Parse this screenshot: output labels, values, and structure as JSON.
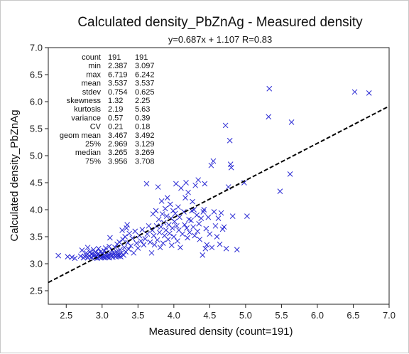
{
  "chart_data": {
    "type": "scatter",
    "title": "Calculated density_PbZnAg - Measured density",
    "subtitle": "y=0.687x + 1.107  R=0.83",
    "xlabel": "Measured density (count=191)",
    "ylabel": "Calculated density_PbZnAg",
    "xlim": [
      2.25,
      7.0
    ],
    "ylim": [
      2.25,
      7.0
    ],
    "xticks": [
      "2.5",
      "3.0",
      "3.5",
      "4.0",
      "4.5",
      "5.0",
      "5.5",
      "6.0",
      "6.5",
      "7.0"
    ],
    "yticks": [
      "2.5",
      "3.0",
      "3.5",
      "4.0",
      "4.5",
      "5.0",
      "5.5",
      "6.0",
      "6.5",
      "7.0"
    ],
    "grid": false,
    "marker": "x",
    "point_color": "#2a2ad4",
    "regression": {
      "slope": 0.687,
      "intercept": 1.107,
      "color": "#000000",
      "style": "dashed"
    },
    "stats": [
      {
        "label": "count",
        "x": "191",
        "y": "191"
      },
      {
        "label": "min",
        "x": "2.387",
        "y": "3.097"
      },
      {
        "label": "max",
        "x": "6.719",
        "y": "6.242"
      },
      {
        "label": "mean",
        "x": "3.537",
        "y": "3.537"
      },
      {
        "label": "stdev",
        "x": "0.754",
        "y": "0.625"
      },
      {
        "label": "skewness",
        "x": "1.32",
        "y": "2.25"
      },
      {
        "label": "kurtosis",
        "x": "2.19",
        "y": "5.63"
      },
      {
        "label": "variance",
        "x": "0.57",
        "y": "0.39"
      },
      {
        "label": "CV",
        "x": "0.21",
        "y": "0.18"
      },
      {
        "label": "geom mean",
        "x": "3.467",
        "y": "3.492"
      },
      {
        "label": "25%",
        "x": "2.969",
        "y": "3.129"
      },
      {
        "label": "median",
        "x": "3.265",
        "y": "3.269"
      },
      {
        "label": "75%",
        "x": "3.956",
        "y": "3.708"
      }
    ],
    "points": [
      [
        2.39,
        3.15
      ],
      [
        2.52,
        3.13
      ],
      [
        2.58,
        3.12
      ],
      [
        2.62,
        3.1
      ],
      [
        2.7,
        3.14
      ],
      [
        2.72,
        3.25
      ],
      [
        2.74,
        3.11
      ],
      [
        2.76,
        3.13
      ],
      [
        2.78,
        3.16
      ],
      [
        2.78,
        3.2
      ],
      [
        2.8,
        3.11
      ],
      [
        2.8,
        3.3
      ],
      [
        2.82,
        3.14
      ],
      [
        2.83,
        3.22
      ],
      [
        2.85,
        3.12
      ],
      [
        2.86,
        3.18
      ],
      [
        2.88,
        3.14
      ],
      [
        2.88,
        3.26
      ],
      [
        2.9,
        3.11
      ],
      [
        2.9,
        3.16
      ],
      [
        2.91,
        3.21
      ],
      [
        2.92,
        3.13
      ],
      [
        2.93,
        3.1
      ],
      [
        2.94,
        3.17
      ],
      [
        2.95,
        3.28
      ],
      [
        2.96,
        3.12
      ],
      [
        2.97,
        3.15
      ],
      [
        2.98,
        3.22
      ],
      [
        2.99,
        3.11
      ],
      [
        3.0,
        3.13
      ],
      [
        3.0,
        3.17
      ],
      [
        3.01,
        3.19
      ],
      [
        3.02,
        3.12
      ],
      [
        3.03,
        3.24
      ],
      [
        3.04,
        3.11
      ],
      [
        3.05,
        3.15
      ],
      [
        3.05,
        3.29
      ],
      [
        3.06,
        3.13
      ],
      [
        3.07,
        3.2
      ],
      [
        3.08,
        3.12
      ],
      [
        3.09,
        3.16
      ],
      [
        3.1,
        3.32
      ],
      [
        3.1,
        3.11
      ],
      [
        3.11,
        3.48
      ],
      [
        3.12,
        3.18
      ],
      [
        3.13,
        3.14
      ],
      [
        3.14,
        3.25
      ],
      [
        3.15,
        3.12
      ],
      [
        3.16,
        3.2
      ],
      [
        3.17,
        3.15
      ],
      [
        3.18,
        3.3
      ],
      [
        3.19,
        3.13
      ],
      [
        3.2,
        3.22
      ],
      [
        3.21,
        3.36
      ],
      [
        3.22,
        3.17
      ],
      [
        3.23,
        3.14
      ],
      [
        3.24,
        3.4
      ],
      [
        3.25,
        3.26
      ],
      [
        3.26,
        3.13
      ],
      [
        3.27,
        3.2
      ],
      [
        3.28,
        3.62
      ],
      [
        3.29,
        3.45
      ],
      [
        3.3,
        3.16
      ],
      [
        3.31,
        3.3
      ],
      [
        3.32,
        3.5
      ],
      [
        3.33,
        3.22
      ],
      [
        3.34,
        3.66
      ],
      [
        3.35,
        3.72
      ],
      [
        3.36,
        3.39
      ],
      [
        3.37,
        3.27
      ],
      [
        3.38,
        3.56
      ],
      [
        3.4,
        3.33
      ],
      [
        3.42,
        3.47
      ],
      [
        3.44,
        3.2
      ],
      [
        3.46,
        3.6
      ],
      [
        3.48,
        3.38
      ],
      [
        3.5,
        3.29
      ],
      [
        3.52,
        3.52
      ],
      [
        3.54,
        3.42
      ],
      [
        3.56,
        3.63
      ],
      [
        3.58,
        3.35
      ],
      [
        3.6,
        3.46
      ],
      [
        3.62,
        4.48
      ],
      [
        3.63,
        3.55
      ],
      [
        3.65,
        3.7
      ],
      [
        3.67,
        3.4
      ],
      [
        3.69,
        3.2
      ],
      [
        3.7,
        3.62
      ],
      [
        3.71,
        3.92
      ],
      [
        3.72,
        3.52
      ],
      [
        3.73,
        3.35
      ],
      [
        3.75,
        3.98
      ],
      [
        3.76,
        3.7
      ],
      [
        3.77,
        3.44
      ],
      [
        3.78,
        4.42
      ],
      [
        3.79,
        3.82
      ],
      [
        3.8,
        3.58
      ],
      [
        3.81,
        3.3
      ],
      [
        3.82,
        3.68
      ],
      [
        3.83,
        4.16
      ],
      [
        3.84,
        3.92
      ],
      [
        3.85,
        3.38
      ],
      [
        3.86,
        3.76
      ],
      [
        3.87,
        3.52
      ],
      [
        3.88,
        4.02
      ],
      [
        3.89,
        3.62
      ],
      [
        3.9,
        3.88
      ],
      [
        3.91,
        4.22
      ],
      [
        3.92,
        3.45
      ],
      [
        3.93,
        3.72
      ],
      [
        3.94,
        3.56
      ],
      [
        3.95,
        4.1
      ],
      [
        3.96,
        3.84
      ],
      [
        3.97,
        3.34
      ],
      [
        3.98,
        3.66
      ],
      [
        3.99,
        3.98
      ],
      [
        4.0,
        3.5
      ],
      [
        4.01,
        3.78
      ],
      [
        4.02,
        3.93
      ],
      [
        4.03,
        4.48
      ],
      [
        4.04,
        3.7
      ],
      [
        4.05,
        3.42
      ],
      [
        4.06,
        4.05
      ],
      [
        4.07,
        3.62
      ],
      [
        4.08,
        3.86
      ],
      [
        4.09,
        3.3
      ],
      [
        4.1,
        4.4
      ],
      [
        4.12,
        3.55
      ],
      [
        4.14,
        3.96
      ],
      [
        4.15,
        3.72
      ],
      [
        4.16,
        4.22
      ],
      [
        4.17,
        4.5
      ],
      [
        4.18,
        3.66
      ],
      [
        4.19,
        3.48
      ],
      [
        4.2,
        4.32
      ],
      [
        4.21,
        3.82
      ],
      [
        4.22,
        3.58
      ],
      [
        4.24,
        3.8
      ],
      [
        4.25,
        3.98
      ],
      [
        4.26,
        4.15
      ],
      [
        4.27,
        3.68
      ],
      [
        4.28,
        4.0
      ],
      [
        4.29,
        3.52
      ],
      [
        4.3,
        4.45
      ],
      [
        4.32,
        3.9
      ],
      [
        4.33,
        3.6
      ],
      [
        4.34,
        4.55
      ],
      [
        4.35,
        3.74
      ],
      [
        4.36,
        3.45
      ],
      [
        4.38,
        3.84
      ],
      [
        4.4,
        3.16
      ],
      [
        4.41,
        3.96
      ],
      [
        4.42,
        4.0
      ],
      [
        4.43,
        4.48
      ],
      [
        4.44,
        3.28
      ],
      [
        4.45,
        3.65
      ],
      [
        4.46,
        3.35
      ],
      [
        4.48,
        3.86
      ],
      [
        4.5,
        3.55
      ],
      [
        4.52,
        4.82
      ],
      [
        4.53,
        3.3
      ],
      [
        4.55,
        4.9
      ],
      [
        4.56,
        3.96
      ],
      [
        4.58,
        3.7
      ],
      [
        4.6,
        3.5
      ],
      [
        4.62,
        3.84
      ],
      [
        4.64,
        3.36
      ],
      [
        4.66,
        3.94
      ],
      [
        4.68,
        3.64
      ],
      [
        4.7,
        3.68
      ],
      [
        4.72,
        5.56
      ],
      [
        4.73,
        3.28
      ],
      [
        4.76,
        4.42
      ],
      [
        4.78,
        5.28
      ],
      [
        4.79,
        4.84
      ],
      [
        4.8,
        4.78
      ],
      [
        4.82,
        3.88
      ],
      [
        4.88,
        3.26
      ],
      [
        4.98,
        4.5
      ],
      [
        5.02,
        3.88
      ],
      [
        5.32,
        5.72
      ],
      [
        5.33,
        6.24
      ],
      [
        5.48,
        4.34
      ],
      [
        5.62,
        4.66
      ],
      [
        5.64,
        5.62
      ],
      [
        6.52,
        6.18
      ],
      [
        6.72,
        6.16
      ],
      [
        3.2,
        3.15
      ],
      [
        3.25,
        3.18
      ],
      [
        2.85,
        3.18
      ],
      [
        2.95,
        3.19
      ]
    ]
  }
}
